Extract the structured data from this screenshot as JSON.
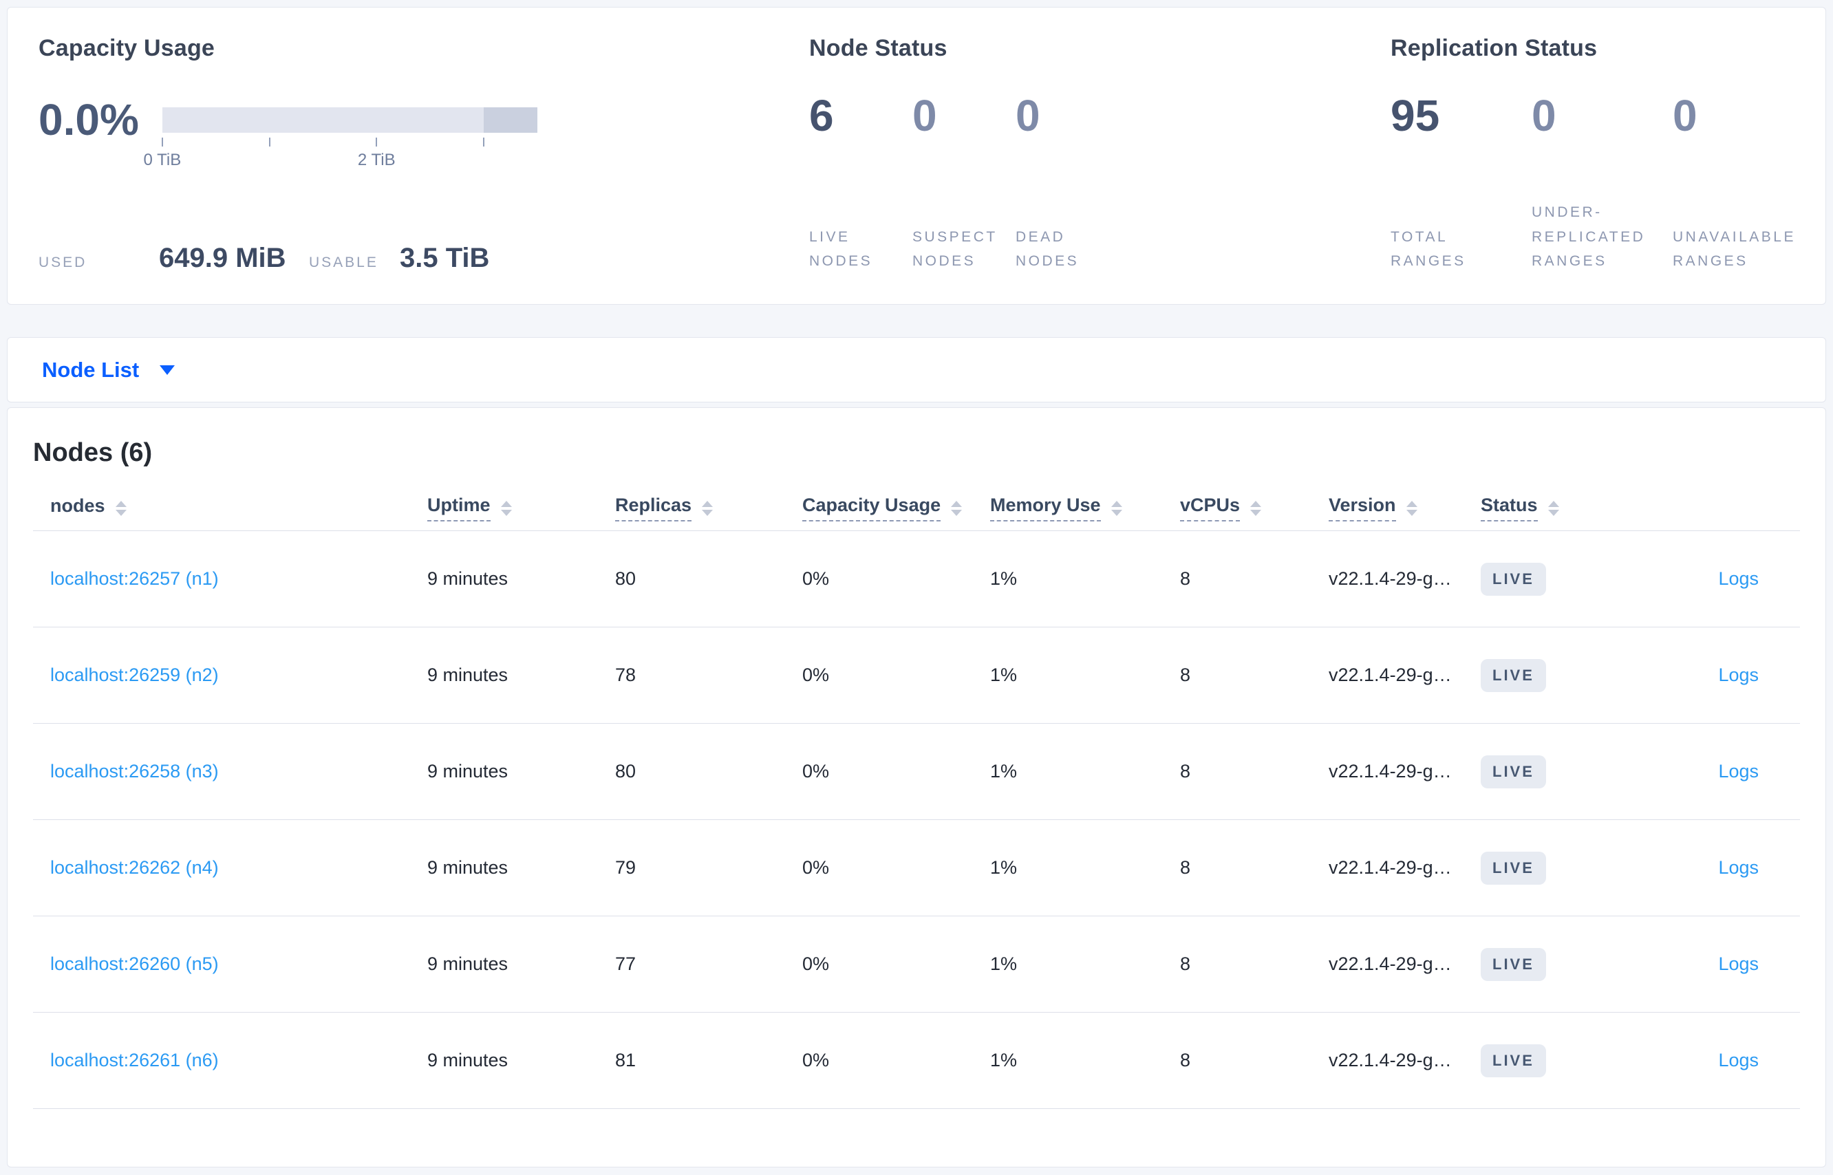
{
  "colors": {
    "page_background": "#f4f6fa",
    "accent_blue": "#0b5fff",
    "link_blue": "#2b9af3",
    "badge_background": "#e7ebf2",
    "badge_text": "#475872",
    "emphasis_number": "#46536e",
    "muted_number": "#7e8aa8",
    "gauge_bar": "#e2e5ef",
    "gauge_bar_end": "#cad0df"
  },
  "summary": {
    "capacity": {
      "title": "Capacity Usage",
      "percent": "0.0%",
      "ticks": [
        {
          "pos": 0,
          "label": "0 TiB"
        },
        {
          "pos": 28.57,
          "label": ""
        },
        {
          "pos": 57.14,
          "label": "2 TiB"
        },
        {
          "pos": 85.71,
          "label": ""
        }
      ],
      "used_label": "USED",
      "used_value": "649.9 MiB",
      "usable_label": "USABLE",
      "usable_value": "3.5 TiB"
    },
    "node_status": {
      "title": "Node Status",
      "stats": [
        {
          "value": "6",
          "label": "LIVE NODES",
          "emph": true
        },
        {
          "value": "0",
          "label": "SUSPECT NODES",
          "emph": false
        },
        {
          "value": "0",
          "label": "DEAD NODES",
          "emph": false
        }
      ]
    },
    "replication": {
      "title": "Replication Status",
      "stats": [
        {
          "value": "95",
          "label": "TOTAL RANGES",
          "emph": true
        },
        {
          "value": "0",
          "label": "UNDER-REPLICATED RANGES",
          "emph": false
        },
        {
          "value": "0",
          "label": "UNAVAILABLE RANGES",
          "emph": false
        }
      ]
    }
  },
  "view_selector": {
    "label": "Node List"
  },
  "nodes_table": {
    "title": "Nodes (6)",
    "columns": [
      {
        "label": "nodes",
        "underline": false,
        "sortable": true
      },
      {
        "label": "Uptime",
        "underline": true,
        "sortable": true
      },
      {
        "label": "Replicas",
        "underline": true,
        "sortable": true
      },
      {
        "label": "Capacity Usage",
        "underline": true,
        "sortable": true
      },
      {
        "label": "Memory Use",
        "underline": true,
        "sortable": true
      },
      {
        "label": "vCPUs",
        "underline": true,
        "sortable": true
      },
      {
        "label": "Version",
        "underline": true,
        "sortable": true
      },
      {
        "label": "Status",
        "underline": true,
        "sortable": true
      },
      {
        "label": "",
        "underline": false,
        "sortable": false
      }
    ],
    "rows": [
      {
        "node": "localhost:26257 (n1)",
        "uptime": "9 minutes",
        "replicas": "80",
        "capacity": "0%",
        "memory": "1%",
        "vcpus": "8",
        "version": "v22.1.4-29-g…",
        "status": "LIVE",
        "logs": "Logs"
      },
      {
        "node": "localhost:26259 (n2)",
        "uptime": "9 minutes",
        "replicas": "78",
        "capacity": "0%",
        "memory": "1%",
        "vcpus": "8",
        "version": "v22.1.4-29-g…",
        "status": "LIVE",
        "logs": "Logs"
      },
      {
        "node": "localhost:26258 (n3)",
        "uptime": "9 minutes",
        "replicas": "80",
        "capacity": "0%",
        "memory": "1%",
        "vcpus": "8",
        "version": "v22.1.4-29-g…",
        "status": "LIVE",
        "logs": "Logs"
      },
      {
        "node": "localhost:26262 (n4)",
        "uptime": "9 minutes",
        "replicas": "79",
        "capacity": "0%",
        "memory": "1%",
        "vcpus": "8",
        "version": "v22.1.4-29-g…",
        "status": "LIVE",
        "logs": "Logs"
      },
      {
        "node": "localhost:26260 (n5)",
        "uptime": "9 minutes",
        "replicas": "77",
        "capacity": "0%",
        "memory": "1%",
        "vcpus": "8",
        "version": "v22.1.4-29-g…",
        "status": "LIVE",
        "logs": "Logs"
      },
      {
        "node": "localhost:26261 (n6)",
        "uptime": "9 minutes",
        "replicas": "81",
        "capacity": "0%",
        "memory": "1%",
        "vcpus": "8",
        "version": "v22.1.4-29-g…",
        "status": "LIVE",
        "logs": "Logs"
      }
    ]
  }
}
